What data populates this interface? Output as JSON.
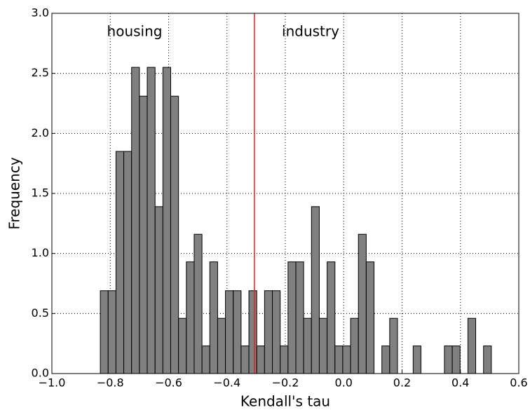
{
  "chart_data": {
    "type": "histogram",
    "xlabel": "Kendall's tau",
    "ylabel": "Frequency",
    "bins": [
      -0.834,
      -0.8072,
      -0.7804,
      -0.7536,
      -0.7268,
      -0.7,
      -0.6732,
      -0.6464,
      -0.6196,
      -0.5928,
      -0.566,
      -0.5392,
      -0.5124,
      -0.4856,
      -0.4588,
      -0.432,
      -0.4052,
      -0.3784,
      -0.3516,
      -0.3248,
      -0.298,
      -0.2712,
      -0.2444,
      -0.2176,
      -0.1908,
      -0.164,
      -0.1372,
      -0.1104,
      -0.0836,
      -0.0568,
      -0.03,
      -0.0032,
      0.0236,
      0.0504,
      0.0772,
      0.104,
      0.1308,
      0.1576,
      0.1844,
      0.2112,
      0.238,
      0.2648,
      0.2916,
      0.3184,
      0.3452,
      0.372,
      0.3988,
      0.4256,
      0.4524,
      0.4792,
      0.506
    ],
    "values": [
      0.69,
      0.69,
      1.85,
      1.85,
      2.55,
      2.31,
      2.55,
      1.39,
      2.55,
      2.31,
      0.46,
      0.93,
      1.16,
      0.23,
      0.93,
      0.46,
      0.69,
      0.69,
      0.23,
      0.69,
      0.23,
      0.69,
      0.69,
      0.23,
      0.93,
      0.93,
      0.46,
      1.39,
      0.46,
      0.93,
      0.23,
      0.23,
      0.46,
      1.16,
      0.93,
      0,
      0.23,
      0.46,
      0,
      0,
      0.23,
      0,
      0,
      0,
      0.23,
      0.23,
      0,
      0.46,
      0,
      0.23
    ],
    "color": "#808080",
    "vline": {
      "value": -0.306,
      "color": "#d62728"
    },
    "annotations": [
      "housing",
      "industry"
    ],
    "xlim": [
      -1.0,
      0.6
    ],
    "xticks": [
      {
        "value": -1.0,
        "label": "−1.0"
      },
      {
        "value": -0.8,
        "label": "−0.8"
      },
      {
        "value": -0.6,
        "label": "−0.6"
      },
      {
        "value": -0.4,
        "label": "−0.4"
      },
      {
        "value": -0.2,
        "label": "−0.2"
      },
      {
        "value": 0,
        "label": "0.0"
      },
      {
        "value": 0.2,
        "label": "0.2"
      },
      {
        "value": 0.4,
        "label": "0.4"
      },
      {
        "value": 0.6,
        "label": "0.6"
      }
    ],
    "ylim": [
      0,
      3.0
    ],
    "yticks": [
      {
        "value": 0,
        "label": "0.0"
      },
      {
        "value": 0.5,
        "label": "0.5"
      },
      {
        "value": 1.0,
        "label": "1.0"
      },
      {
        "value": 1.5,
        "label": "1.5"
      },
      {
        "value": 2.0,
        "label": "2.0"
      },
      {
        "value": 2.5,
        "label": "2.5"
      },
      {
        "value": 3.0,
        "label": "3.0"
      }
    ],
    "grid": true
  }
}
